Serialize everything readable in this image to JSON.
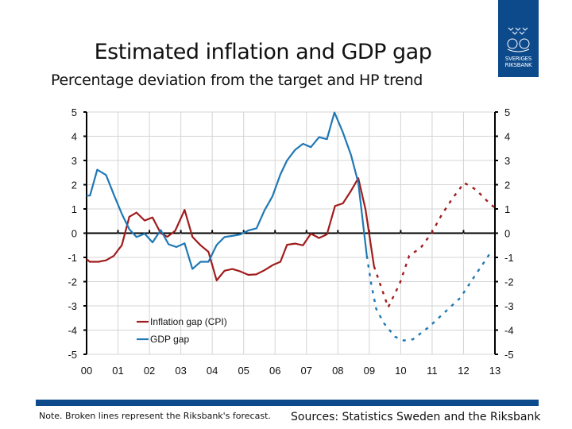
{
  "header": {
    "title": "Estimated inflation and GDP gap",
    "subtitle": "Percentage deviation from the target and HP trend"
  },
  "logo": {
    "text": "SVERIGES RIKSBANK",
    "icon": "crown-emblem-icon",
    "color": "#0d4a8c"
  },
  "footer": {
    "note": "Note. Broken lines represent the Riksbank's forecast.",
    "sources": "Sources: Statistics Sweden and the Riksbank",
    "bar_color": "#0d4a8c"
  },
  "chart_data": {
    "type": "line",
    "title": "",
    "xlabel": "",
    "ylabel": "",
    "xlim": [
      2000,
      2013
    ],
    "ylim": [
      -5,
      5
    ],
    "x_tick_labels": [
      "00",
      "01",
      "02",
      "03",
      "04",
      "05",
      "06",
      "07",
      "08",
      "09",
      "10",
      "11",
      "12",
      "13"
    ],
    "y_ticks": [
      5,
      4,
      3,
      2,
      1,
      0,
      -1,
      -2,
      -3,
      -4,
      -5
    ],
    "grid": true,
    "legend": "bottom-left",
    "series": [
      {
        "name": "Inflation gap (CPI)",
        "color": "#a01c1c",
        "actual": [
          [
            2000.0,
            -1.07
          ],
          [
            2000.1,
            -1.18
          ],
          [
            2000.37,
            -1.18
          ],
          [
            2000.62,
            -1.12
          ],
          [
            2000.87,
            -0.93
          ],
          [
            2001.0,
            -0.7
          ],
          [
            2001.12,
            -0.5
          ],
          [
            2001.36,
            0.68
          ],
          [
            2001.59,
            0.85
          ],
          [
            2001.85,
            0.52
          ],
          [
            2002.1,
            0.65
          ],
          [
            2002.36,
            0.0
          ],
          [
            2002.57,
            -0.15
          ],
          [
            2002.82,
            0.1
          ],
          [
            2003.12,
            0.96
          ],
          [
            2003.37,
            -0.15
          ],
          [
            2003.63,
            -0.5
          ],
          [
            2003.88,
            -0.77
          ],
          [
            2004.14,
            -1.95
          ],
          [
            2004.39,
            -1.55
          ],
          [
            2004.64,
            -1.48
          ],
          [
            2004.9,
            -1.58
          ],
          [
            2005.15,
            -1.72
          ],
          [
            2005.4,
            -1.7
          ],
          [
            2005.66,
            -1.53
          ],
          [
            2005.92,
            -1.32
          ],
          [
            2006.17,
            -1.18
          ],
          [
            2006.38,
            -0.48
          ],
          [
            2006.64,
            -0.43
          ],
          [
            2006.89,
            -0.5
          ],
          [
            2007.14,
            -0.02
          ],
          [
            2007.4,
            -0.2
          ],
          [
            2007.65,
            -0.05
          ],
          [
            2007.91,
            1.12
          ],
          [
            2008.16,
            1.23
          ],
          [
            2008.42,
            1.75
          ],
          [
            2008.65,
            2.27
          ],
          [
            2008.88,
            0.98
          ],
          [
            2009.15,
            -1.37
          ]
        ],
        "forecast": [
          [
            2009.15,
            -1.37
          ],
          [
            2009.6,
            -3.06
          ],
          [
            2009.97,
            -2.08
          ],
          [
            2010.27,
            -0.93
          ],
          [
            2010.64,
            -0.6
          ],
          [
            2010.98,
            0.0
          ],
          [
            2011.31,
            0.77
          ],
          [
            2011.64,
            1.42
          ],
          [
            2012.02,
            2.08
          ],
          [
            2012.39,
            1.8
          ],
          [
            2012.85,
            1.2
          ],
          [
            2013.0,
            1.05
          ]
        ]
      },
      {
        "name": "GDP gap",
        "color": "#1f78b4",
        "actual": [
          [
            2000.0,
            1.55
          ],
          [
            2000.11,
            1.55
          ],
          [
            2000.34,
            2.62
          ],
          [
            2000.62,
            2.4
          ],
          [
            2000.87,
            1.58
          ],
          [
            2001.13,
            0.77
          ],
          [
            2001.36,
            0.16
          ],
          [
            2001.59,
            -0.16
          ],
          [
            2001.85,
            -0.02
          ],
          [
            2002.1,
            -0.38
          ],
          [
            2002.36,
            0.13
          ],
          [
            2002.61,
            -0.46
          ],
          [
            2002.86,
            -0.57
          ],
          [
            2003.12,
            -0.42
          ],
          [
            2003.37,
            -1.48
          ],
          [
            2003.63,
            -1.18
          ],
          [
            2003.88,
            -1.18
          ],
          [
            2004.14,
            -0.49
          ],
          [
            2004.39,
            -0.16
          ],
          [
            2004.64,
            -0.11
          ],
          [
            2004.9,
            -0.05
          ],
          [
            2005.15,
            0.11
          ],
          [
            2005.41,
            0.2
          ],
          [
            2005.66,
            0.93
          ],
          [
            2005.92,
            1.53
          ],
          [
            2006.17,
            2.43
          ],
          [
            2006.38,
            3.0
          ],
          [
            2006.64,
            3.44
          ],
          [
            2006.89,
            3.69
          ],
          [
            2007.14,
            3.55
          ],
          [
            2007.4,
            3.96
          ],
          [
            2007.65,
            3.88
          ],
          [
            2007.89,
            4.98
          ],
          [
            2008.16,
            4.16
          ],
          [
            2008.42,
            3.22
          ],
          [
            2008.65,
            2.08
          ],
          [
            2008.92,
            -0.93
          ]
        ],
        "forecast": [
          [
            2008.92,
            -0.93
          ],
          [
            2009.06,
            -2.08
          ],
          [
            2009.22,
            -3.12
          ],
          [
            2009.47,
            -3.72
          ],
          [
            2009.81,
            -4.27
          ],
          [
            2010.1,
            -4.43
          ],
          [
            2010.39,
            -4.38
          ],
          [
            2010.89,
            -3.88
          ],
          [
            2011.39,
            -3.28
          ],
          [
            2011.89,
            -2.68
          ],
          [
            2012.39,
            -1.7
          ],
          [
            2012.85,
            -0.82
          ]
        ]
      }
    ]
  }
}
